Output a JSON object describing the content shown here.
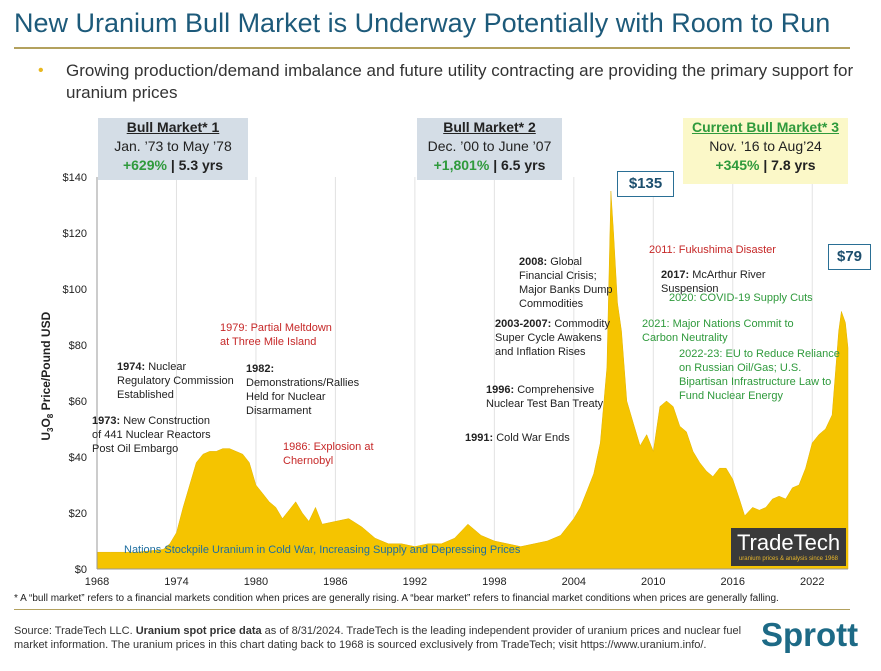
{
  "title": "New Uranium Bull Market is Underway Potentially with Room to Run",
  "bullet": "Growing production/demand imbalance and future utility contracting are providing the primary support for uranium prices",
  "bull_markets": [
    {
      "heading": "Bull Market* 1",
      "range": "Jan. ’73 to May ’78",
      "gain": "+629%",
      "duration": "| 5.3 yrs"
    },
    {
      "heading": "Bull Market* 2",
      "range": "Dec. ’00 to June ’07",
      "gain": "+1,801%",
      "duration": "| 6.5 yrs"
    },
    {
      "heading": "Current Bull Market* 3",
      "range": "Nov. ’16 to Aug’24",
      "gain": "+345%",
      "duration": "| 7.8 yrs"
    }
  ],
  "callouts": {
    "peak": "$135",
    "current": "$79"
  },
  "annotations": {
    "a1973_year": "1973:",
    "a1973_text": " New Construction of 441 Nuclear Reactors Post Oil Embargo",
    "a1974_year": "1974:",
    "a1974_text": " Nuclear Regulatory Commission Established",
    "a1979": "1979: Partial Meltdown at Three Mile Island",
    "a1982_year": "1982:",
    "a1982_text": " Demonstrations/Rallies Held for Nuclear Disarmament",
    "a1986": "1986: Explosion at Chernobyl",
    "a1991_year": "1991:",
    "a1991_text": " Cold War Ends",
    "a1996_year": "1996:",
    "a1996_text": " Comprehensive Nuclear Test Ban Treaty",
    "a2003_year": "2003-2007:",
    "a2003_text": " Commodity Super Cycle Awakens and Inflation Rises",
    "a2008_year": "2008:",
    "a2008_text": " Global Financial Crisis; Major Banks Dump Commodities",
    "a2011": "2011: Fukushima Disaster",
    "a2017_year": "2017:",
    "a2017_text": " McArthur River Suspension",
    "a2020": "2020: COVID-19 Supply Cuts",
    "a2021": "2021: Major Nations Commit to Carbon Neutrality",
    "a2022": "2022-23: EU to Reduce Reliance on Russian Oil/Gas; U.S. Bipartisan Infrastructure Law to Fund Nuclear Energy",
    "stockpile": "Nations Stockpile Uranium in Cold War, Increasing Supply and Depressing Prices"
  },
  "footnote": "* A “bull market” refers to a financial markets condition when prices are generally rising. A “bear market” refers to financial market conditions when prices are generally falling.",
  "source": {
    "prefix": "Source: TradeTech LLC. ",
    "bold": "Uranium spot price data",
    "rest": " as of 8/31/2024. TradeTech is the leading independent provider of uranium prices and nuclear fuel market information. The uranium prices in this chart dating back to 1968 is sourced exclusively from TradeTech; visit https://www.uranium.info/."
  },
  "logos": {
    "tradetech": "TradeTech",
    "tradetech_tag": "uranium prices & analysis since 1968",
    "sprott": "Sprott"
  },
  "colors": {
    "fill": "#f5c400",
    "title": "#1d5a7a",
    "green": "#2f9a3c",
    "red": "#c62828"
  },
  "chart_data": {
    "type": "area",
    "title": "Uranium spot price",
    "ylabel": "U3O8 Price/Pound USD",
    "xlabel": "",
    "xlim": [
      1968,
      2024.7
    ],
    "ylim": [
      0,
      140
    ],
    "x_ticks": [
      "1968",
      "1974",
      "1980",
      "1986",
      "1992",
      "1998",
      "2004",
      "2010",
      "2016",
      "2022"
    ],
    "y_ticks": [
      "$0",
      "$20",
      "$40",
      "$60",
      "$80",
      "$100",
      "$120",
      "$140"
    ],
    "x": [
      1968,
      1969,
      1970,
      1971,
      1972,
      1973,
      1973.5,
      1974,
      1974.5,
      1975,
      1975.5,
      1976,
      1976.5,
      1977,
      1977.5,
      1978,
      1978.5,
      1979,
      1979.5,
      1980,
      1980.5,
      1981,
      1981.5,
      1982,
      1982.5,
      1983,
      1983.5,
      1984,
      1984.5,
      1985,
      1986,
      1987,
      1988,
      1989,
      1990,
      1991,
      1992,
      1993,
      1994,
      1995,
      1996,
      1996.5,
      1997,
      1998,
      1999,
      2000,
      2001,
      2002,
      2003,
      2004,
      2004.5,
      2005,
      2005.5,
      2006,
      2006.5,
      2006.8,
      2007,
      2007.3,
      2007.6,
      2008,
      2008.5,
      2009,
      2009.5,
      2010,
      2010.5,
      2011,
      2011.5,
      2012,
      2012.5,
      2013,
      2013.5,
      2014,
      2014.5,
      2015,
      2015.5,
      2016,
      2016.5,
      2016.9,
      2017.5,
      2018,
      2018.5,
      2019,
      2019.5,
      2020,
      2020.5,
      2021,
      2021.5,
      2022,
      2022.5,
      2023,
      2023.5,
      2024,
      2024.2,
      2024.5,
      2024.7
    ],
    "values": [
      6,
      6,
      6,
      6,
      6.5,
      7,
      9,
      13,
      22,
      30,
      38,
      41,
      42,
      42,
      43,
      43,
      42,
      41,
      38,
      30,
      27,
      24,
      22,
      18,
      21,
      24,
      20,
      17,
      22,
      16,
      17,
      18,
      15,
      11,
      9,
      9,
      8,
      9,
      9,
      11,
      16,
      14,
      12,
      10,
      9,
      8,
      9,
      10,
      12,
      18,
      22,
      28,
      34,
      45,
      72,
      135,
      120,
      95,
      85,
      60,
      52,
      44,
      48,
      42,
      58,
      60,
      58,
      51,
      49,
      42,
      38,
      35,
      33,
      36,
      36,
      32,
      25,
      19,
      22,
      21,
      22,
      25,
      26,
      25,
      29,
      30,
      36,
      45,
      48,
      50,
      55,
      85,
      92,
      88,
      79
    ]
  }
}
